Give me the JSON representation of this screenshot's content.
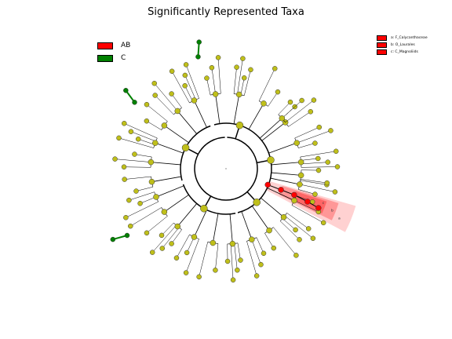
{
  "title": "Significantly Represented Taxa",
  "legend": [
    {
      "label": "AB",
      "color": "#ff0000"
    },
    {
      "label": "C",
      "color": "#008000"
    }
  ],
  "clade_legend": [
    {
      "label": "a: F_Calycanthaceae",
      "color": "#ff0000"
    },
    {
      "label": "b: O_Laurales",
      "color": "#ff0000"
    },
    {
      "label": "c: C_Magnoliids",
      "color": "#ff0000"
    }
  ],
  "clade_labels": [
    "a",
    "b",
    "c"
  ],
  "colors": {
    "neutral_node": "#bfbf1a",
    "AB": "#ff0000",
    "C": "#008000",
    "highlight": "#ff0000"
  }
}
